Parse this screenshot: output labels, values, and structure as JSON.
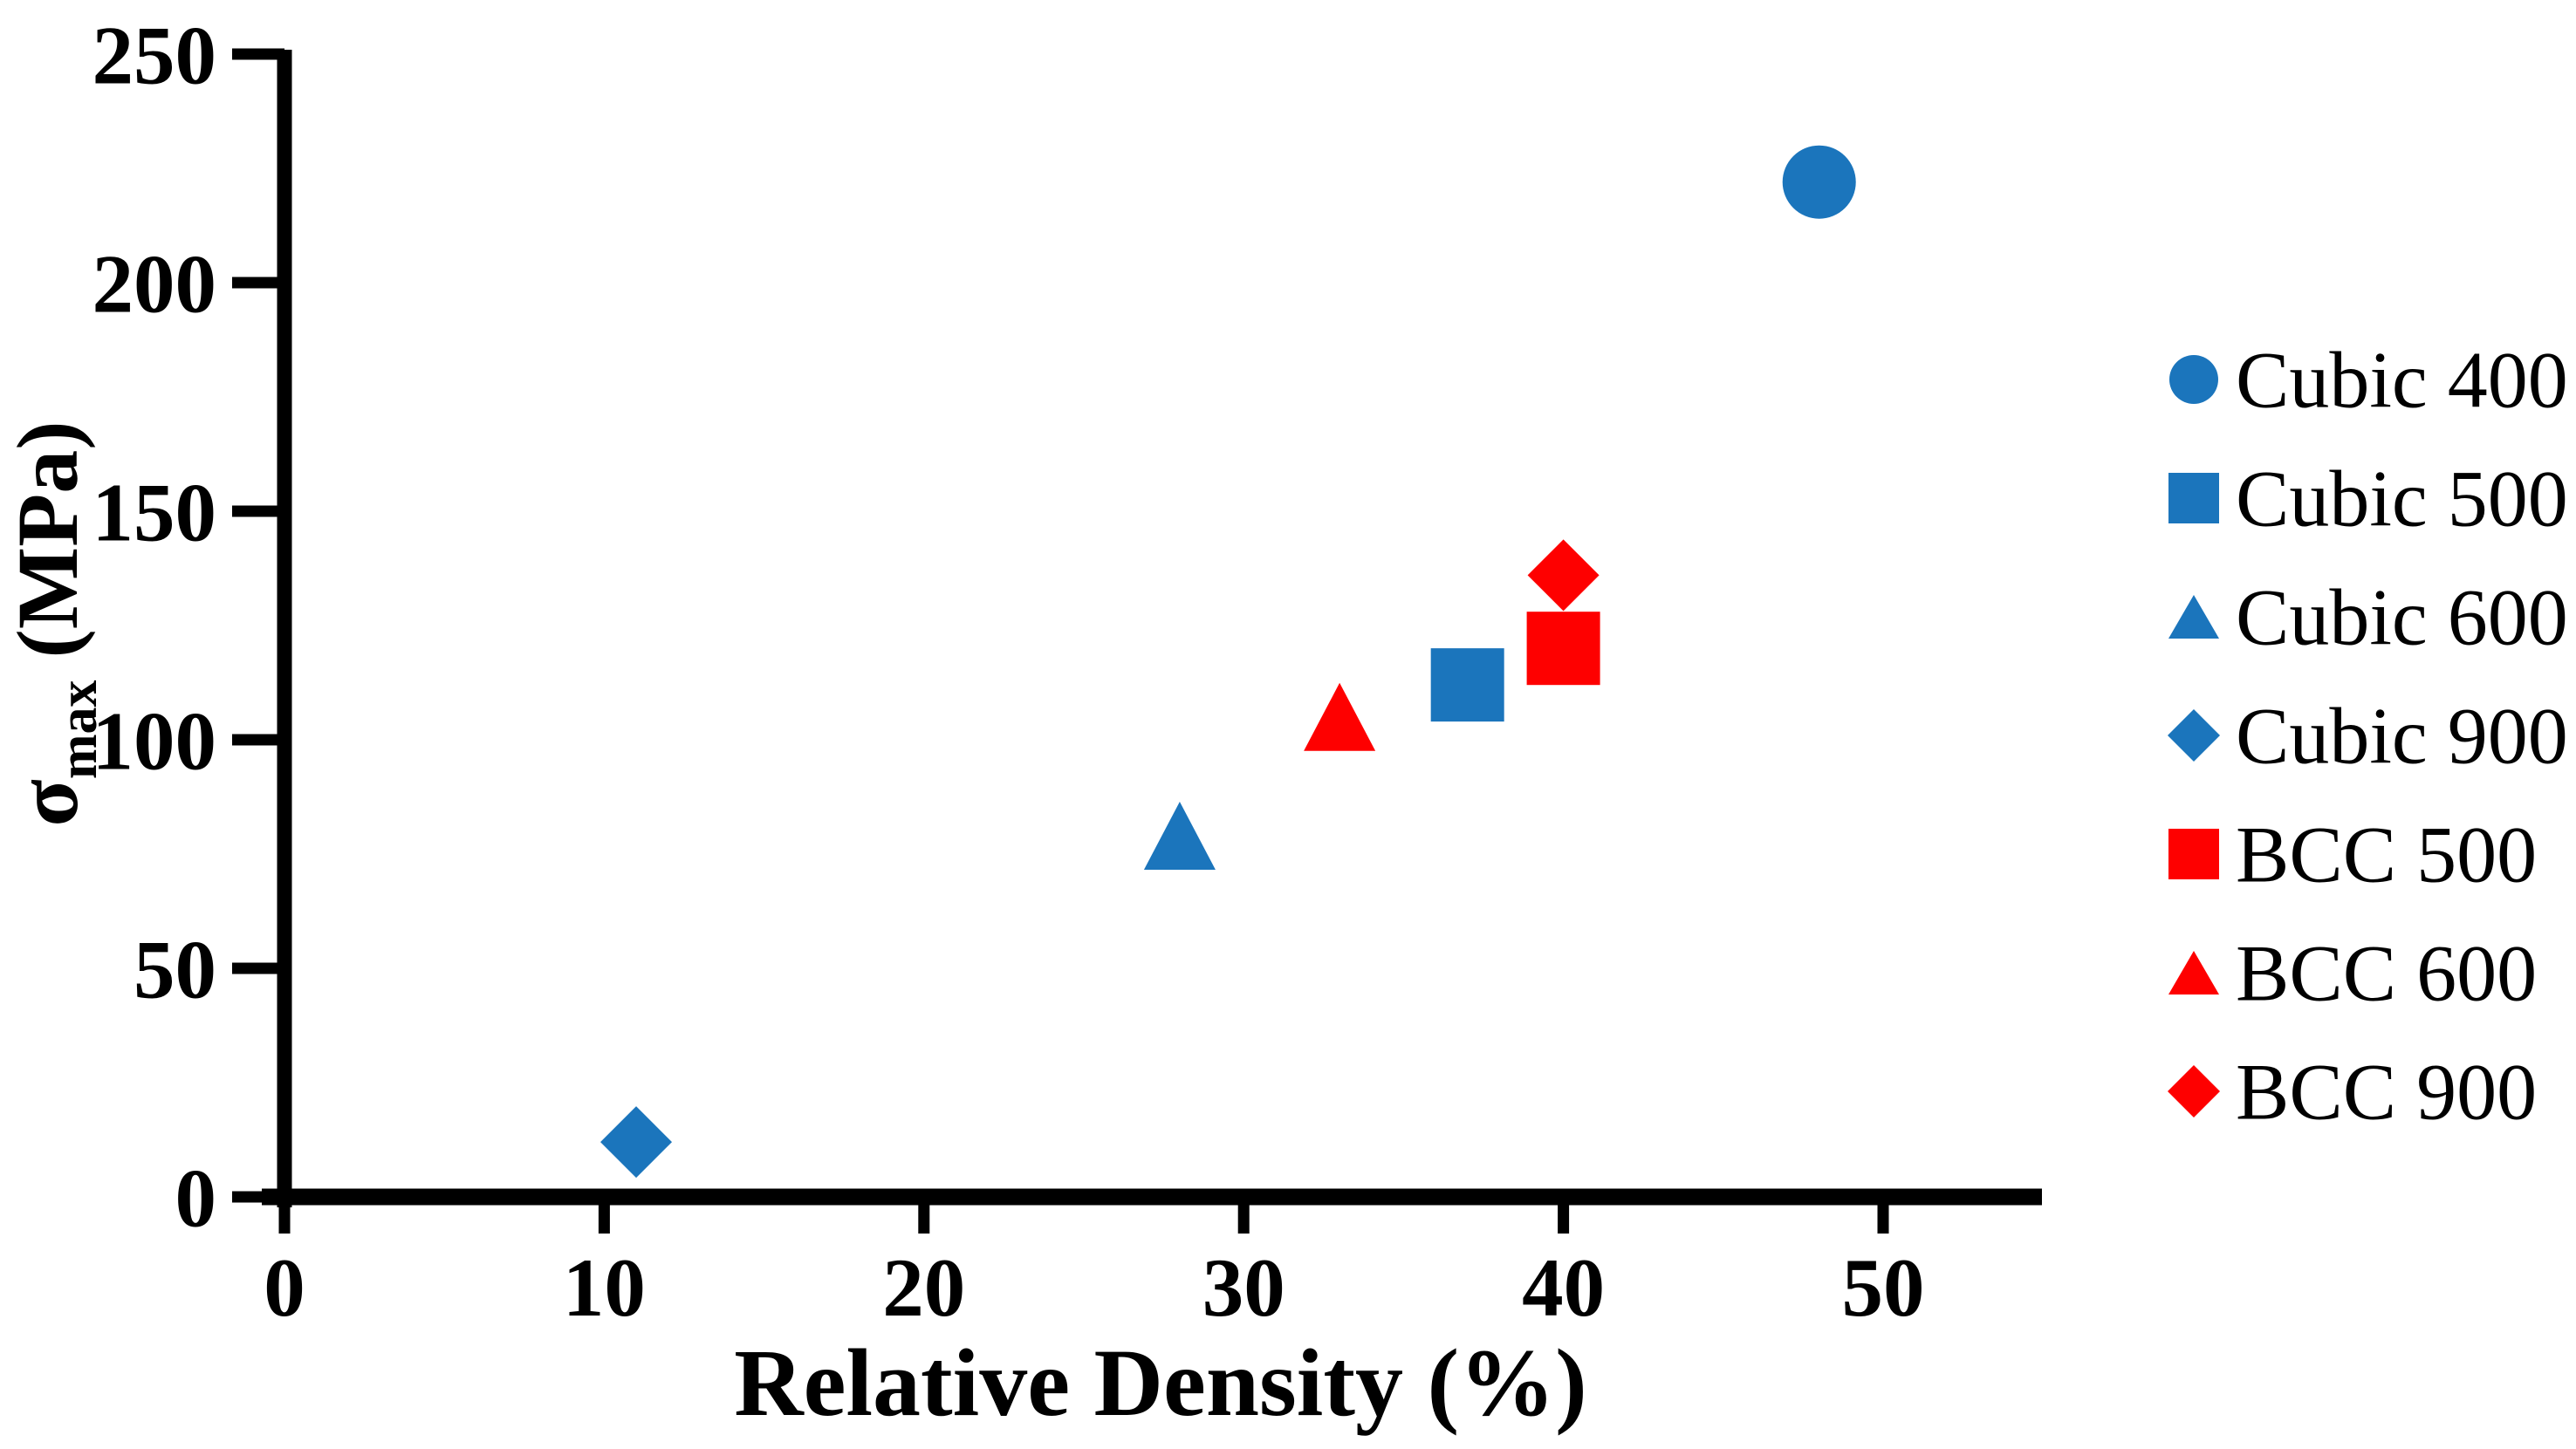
{
  "chart_data": {
    "type": "scatter",
    "title": "",
    "xlabel": "Relative Density (%)",
    "ylabel": {
      "base": "σ",
      "sub": "max",
      "rest": " (MPa)"
    },
    "xlim": [
      0,
      55
    ],
    "ylim": [
      0,
      250
    ],
    "xticks": [
      0,
      10,
      20,
      30,
      40,
      50
    ],
    "yticks": [
      0,
      50,
      100,
      150,
      200,
      250
    ],
    "grid": false,
    "legend_position": "right",
    "axis_color": "#000000",
    "series": [
      {
        "name": "Cubic 400",
        "marker": "circle",
        "color": "#1B75BC",
        "points": [
          [
            48,
            222
          ]
        ]
      },
      {
        "name": "Cubic 500",
        "marker": "square",
        "color": "#1B75BC",
        "points": [
          [
            37,
            112
          ]
        ]
      },
      {
        "name": "Cubic 600",
        "marker": "triangle",
        "color": "#1B75BC",
        "points": [
          [
            28,
            79
          ]
        ]
      },
      {
        "name": "Cubic 900",
        "marker": "diamond",
        "color": "#1B75BC",
        "points": [
          [
            11,
            12
          ]
        ]
      },
      {
        "name": "BCC 500",
        "marker": "square",
        "color": "#FE0000",
        "points": [
          [
            40,
            120
          ]
        ]
      },
      {
        "name": "BCC 600",
        "marker": "triangle",
        "color": "#FE0000",
        "points": [
          [
            33,
            105
          ]
        ]
      },
      {
        "name": "BCC 900",
        "marker": "diamond",
        "color": "#FE0000",
        "points": [
          [
            40,
            136
          ]
        ]
      }
    ]
  }
}
